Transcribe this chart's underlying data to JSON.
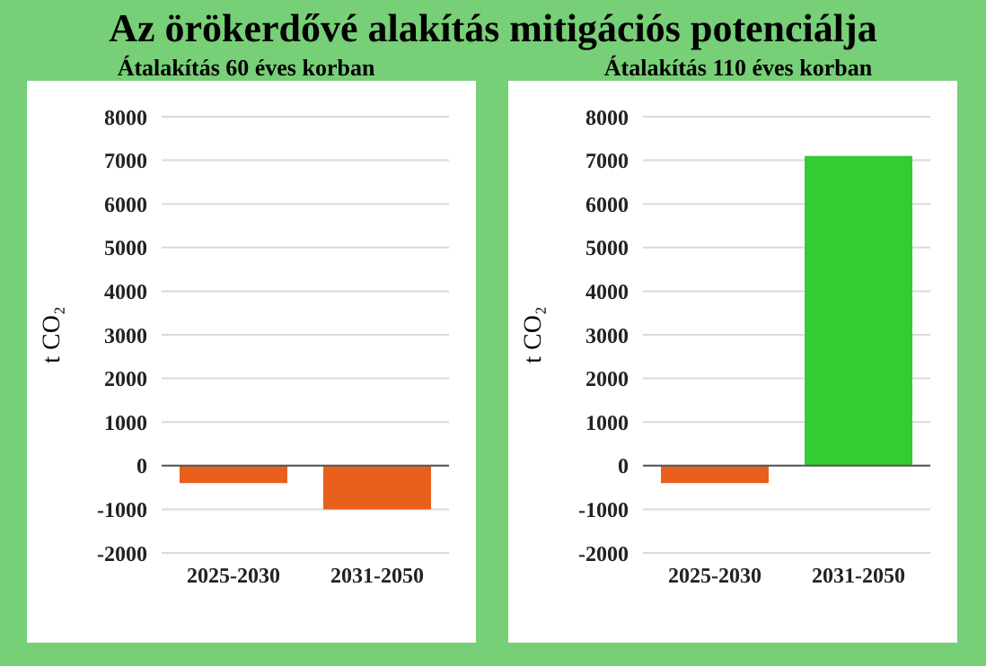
{
  "chart_data": [
    {
      "type": "bar",
      "title": "Az örökerdővé alakítás mitigációs potenciálja",
      "subtitle": "Átalakítás 60 éves korban",
      "ylabel": "t CO₂",
      "categories": [
        "2025-2030",
        "2031-2050"
      ],
      "values": [
        -400,
        -1000
      ],
      "colors": [
        "#e8601c",
        "#e8601c"
      ],
      "ylim": [
        -2000,
        8000
      ],
      "yticks": [
        -2000,
        -1000,
        0,
        1000,
        2000,
        3000,
        4000,
        5000,
        6000,
        7000,
        8000
      ],
      "grid": "y"
    },
    {
      "type": "bar",
      "subtitle": "Átalakítás 110 éves korban",
      "ylabel": "t CO₂",
      "categories": [
        "2025-2030",
        "2031-2050"
      ],
      "values": [
        -400,
        7100
      ],
      "colors": [
        "#e8601c",
        "#33cc33"
      ],
      "ylim": [
        -2000,
        8000
      ],
      "yticks": [
        -2000,
        -1000,
        0,
        1000,
        2000,
        3000,
        4000,
        5000,
        6000,
        7000,
        8000
      ],
      "grid": "y"
    }
  ]
}
